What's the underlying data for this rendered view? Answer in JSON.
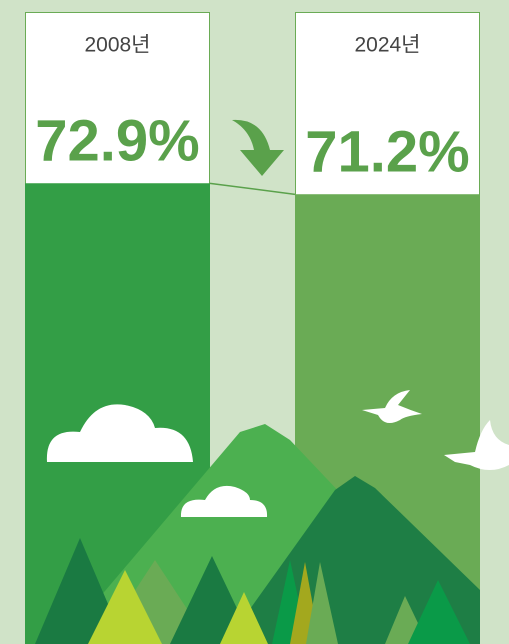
{
  "chart_data": {
    "type": "bar",
    "categories": [
      "2008년",
      "2024년"
    ],
    "values": [
      72.9,
      71.2
    ],
    "value_labels": [
      "72.9%",
      "71.2%"
    ],
    "colors": [
      "#339e46",
      "#6aab55"
    ]
  }
}
